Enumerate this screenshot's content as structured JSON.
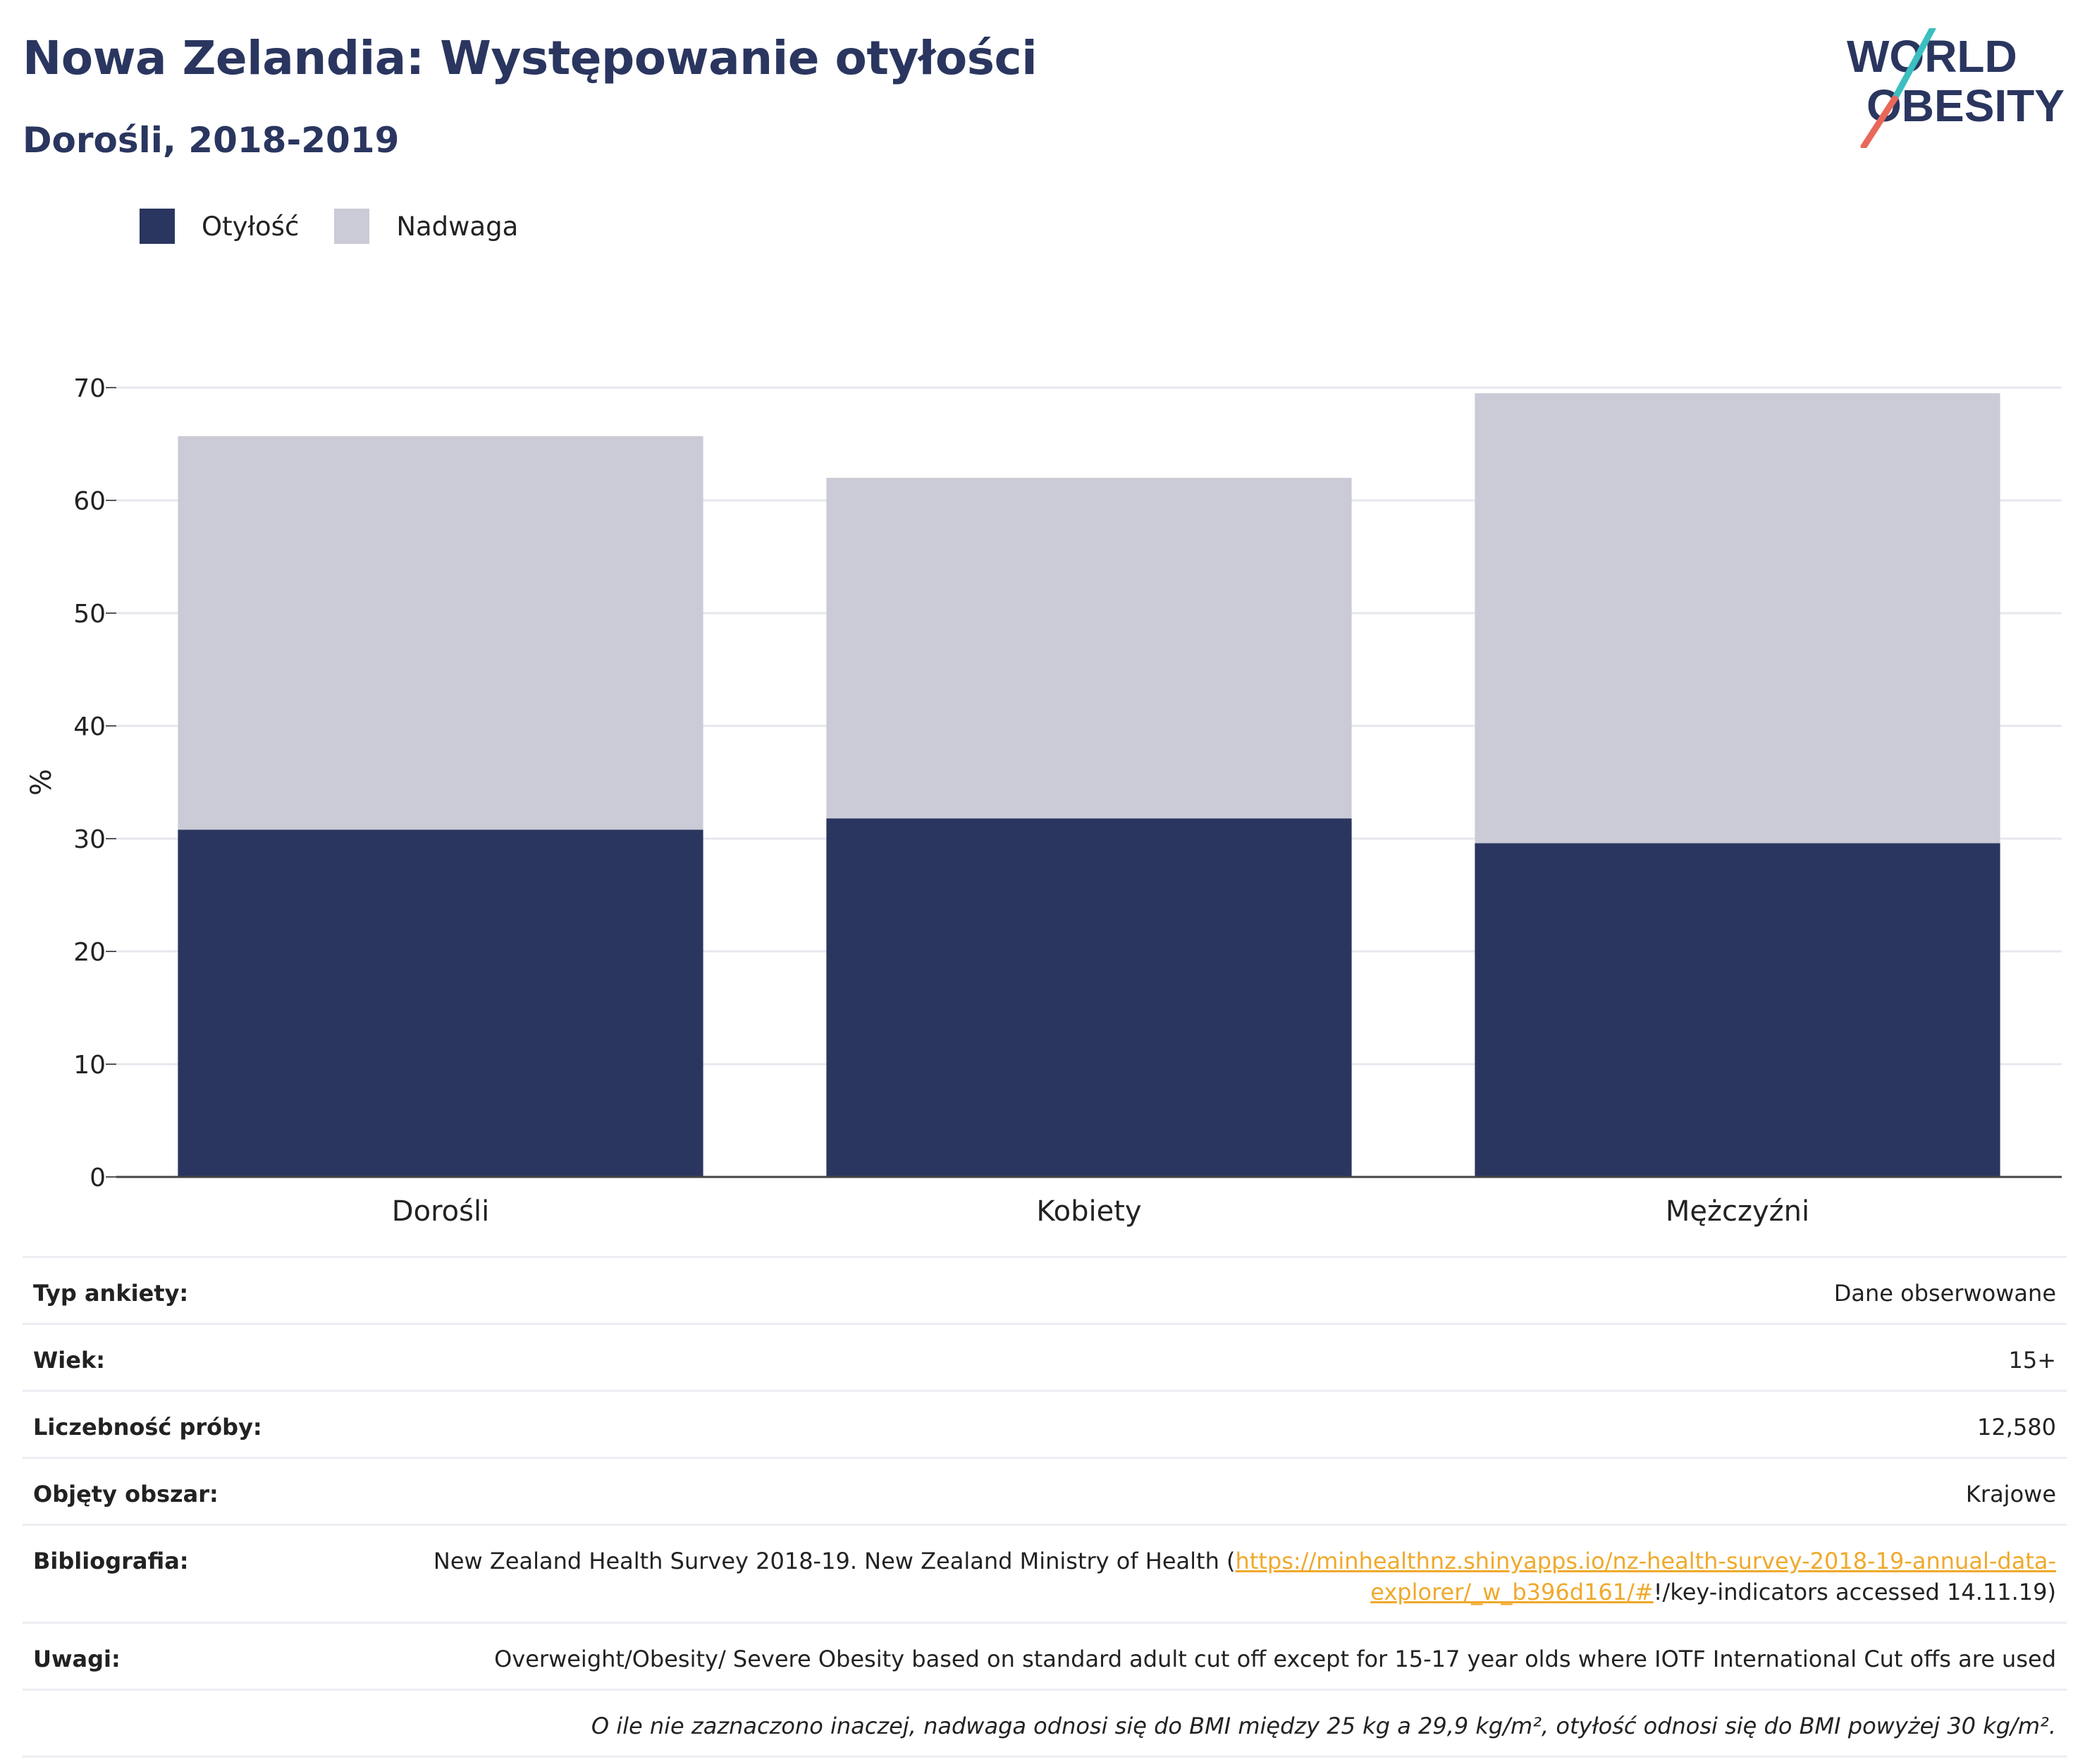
{
  "header": {
    "title": "Nowa Zelandia: Występowanie otyłości",
    "subtitle": "Dorośli, 2018-2019"
  },
  "logo": {
    "line1": "WORLD",
    "line2": "OBESITY"
  },
  "legend": [
    {
      "label": "Otyłość",
      "color": "#2a365f"
    },
    {
      "label": "Nadwaga",
      "color": "#cacbd6"
    }
  ],
  "chart_data": {
    "type": "bar",
    "stacked": true,
    "categories": [
      "Dorośli",
      "Kobiety",
      "Mężczyźni"
    ],
    "series": [
      {
        "name": "Otyłość",
        "values": [
          30.8,
          31.8,
          29.6
        ],
        "color": "#2a365f"
      },
      {
        "name": "Nadwaga",
        "values": [
          34.9,
          30.2,
          39.9
        ],
        "color": "#cacbd6"
      }
    ],
    "ylabel": "%",
    "xlabel": "",
    "ylim": [
      0,
      70
    ],
    "yticks": [
      0,
      10,
      20,
      30,
      40,
      50,
      60,
      70
    ],
    "grid": true,
    "legend_position": "top-left"
  },
  "info": {
    "rows": [
      {
        "key": "Typ ankiety:",
        "value": "Dane obserwowane"
      },
      {
        "key": "Wiek:",
        "value": "15+"
      },
      {
        "key": "Liczebność próby:",
        "value": "12,580"
      },
      {
        "key": "Objęty obszar:",
        "value": "Krajowe"
      }
    ],
    "bibliography": {
      "key": "Bibliografia:",
      "prefix": "New Zealand Health Survey 2018-19. New Zealand Ministry of Health (",
      "link": "https://minhealthnz.shinyapps.io/nz-health-survey-2018-19-annual-data-explorer/_w_b396d161/#",
      "suffix": "!/key-indicators accessed 14.11.19)"
    },
    "notes": {
      "key": "Uwagi:",
      "value": "Overweight/Obesity/ Severe Obesity based on standard adult cut off except for 15-17 year olds where IOTF International Cut offs are used"
    },
    "footnote": "O ile nie zaznaczono inaczej, nadwaga odnosi się do BMI między 25 kg a 29,9 kg/m², otyłość odnosi się do BMI powyżej 30 kg/m²."
  }
}
